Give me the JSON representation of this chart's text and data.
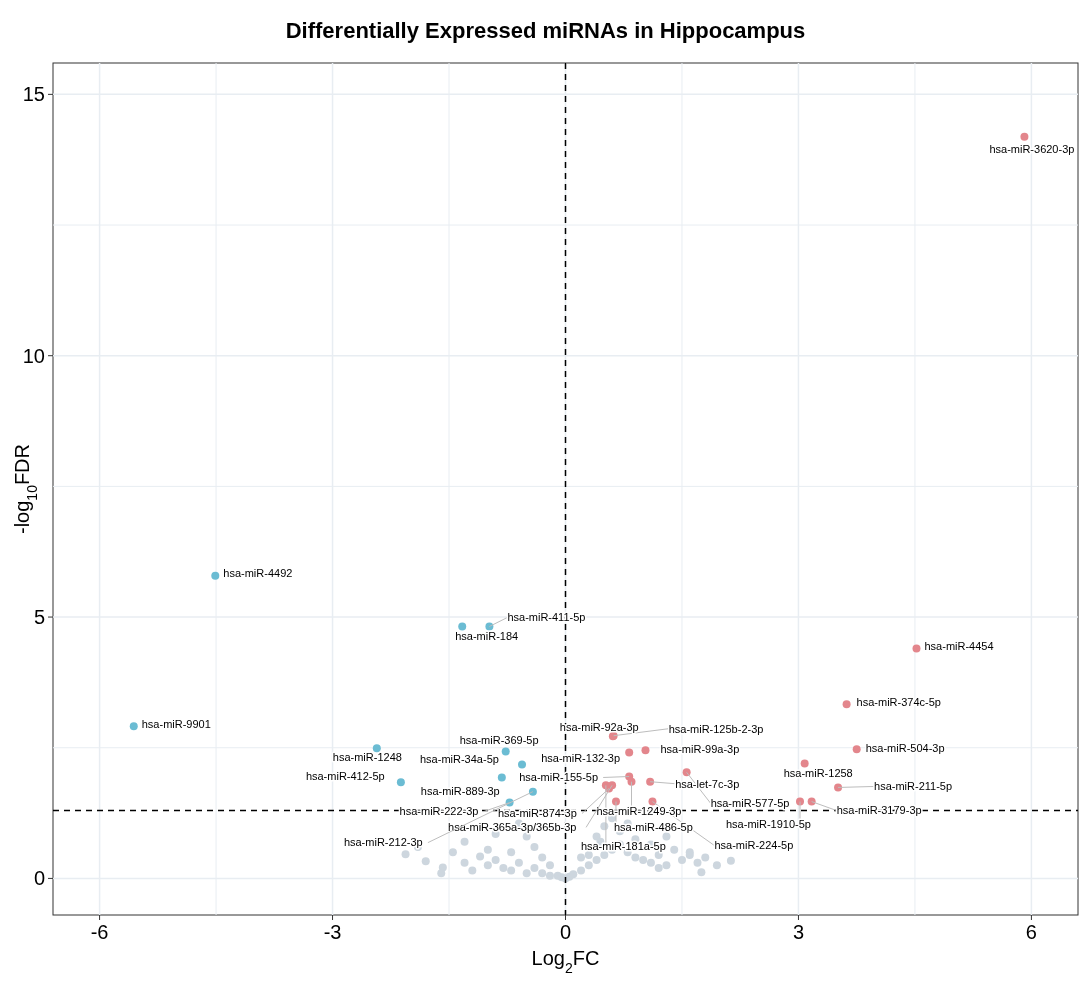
{
  "chart_data": {
    "type": "scatter",
    "title": "Differentially Expressed miRNAs in Hippocampus",
    "xlabel": "Log$_{2}$FC",
    "ylabel": "-log$_{10}$FDR",
    "xlim": [
      -6.6,
      6.6
    ],
    "ylim": [
      -0.7,
      15.6
    ],
    "xticks": [
      -6,
      {
        "value": -4.5,
        "label": null
      },
      -3,
      {
        "value": -1.5,
        "label": null
      },
      0,
      {
        "value": 1.5,
        "label": null
      },
      3,
      {
        "value": 4.5,
        "label": null
      },
      6
    ],
    "yticks": [
      0,
      {
        "value": 2.5,
        "label": null
      },
      5,
      {
        "value": 7.5,
        "label": null
      },
      10,
      {
        "value": 12.5,
        "label": null
      },
      15
    ],
    "grid": true,
    "legend": false,
    "marker": "circle",
    "ref_lines": [
      {
        "axis": "x",
        "value": 0,
        "color": "#000000",
        "line_style": "dashed"
      },
      {
        "axis": "y",
        "value": 1.3,
        "color": "#000000",
        "line_style": "dashed"
      }
    ],
    "series": [
      {
        "color": "#cdd6de",
        "x": [
          -2.06,
          -1.8,
          -1.58,
          -1.45,
          -1.3,
          -1.2,
          -1.1,
          -1.0,
          -0.9,
          -0.8,
          -0.7,
          -0.6,
          -0.5,
          -0.4,
          -0.3,
          -0.2,
          -0.1,
          -0.05,
          0.0,
          0.05,
          0.1,
          0.2,
          0.3,
          0.4,
          0.5,
          0.6,
          0.7,
          0.8,
          0.9,
          1.0,
          1.1,
          1.2,
          1.3,
          1.4,
          1.5,
          1.6,
          1.7,
          1.8,
          1.95,
          2.13,
          -1.9,
          -1.3,
          -0.9,
          -0.6,
          -0.4,
          -0.3,
          -0.2,
          0.2,
          0.3,
          0.4,
          0.5,
          0.7,
          0.9,
          1.1,
          1.3,
          1.6,
          -1.0,
          -0.7,
          0.6,
          0.8,
          -0.5,
          0.45,
          1.2,
          -1.6,
          1.75
        ],
        "values": [
          0.46,
          0.33,
          0.21,
          0.5,
          0.3,
          0.15,
          0.42,
          0.25,
          0.35,
          0.2,
          0.15,
          0.3,
          0.1,
          0.2,
          0.1,
          0.05,
          0.05,
          0.02,
          0.0,
          0.03,
          0.08,
          0.15,
          0.25,
          0.35,
          0.45,
          0.55,
          0.65,
          0.5,
          0.4,
          0.35,
          0.3,
          0.45,
          0.25,
          0.55,
          0.35,
          0.5,
          0.3,
          0.4,
          0.25,
          0.34,
          0.6,
          0.7,
          0.85,
          1.05,
          0.6,
          0.4,
          0.25,
          0.4,
          0.45,
          0.8,
          1.0,
          0.9,
          0.75,
          0.65,
          0.8,
          0.45,
          0.55,
          0.5,
          1.15,
          1.05,
          0.8,
          0.7,
          0.2,
          0.1,
          0.12
        ]
      },
      {
        "color": "#6bbcd3",
        "x": [
          -4.51,
          -5.56,
          -1.33,
          -0.98,
          -2.43,
          -2.12,
          -0.77,
          -0.56,
          -0.82,
          -0.42,
          -0.72
        ],
        "values": [
          5.79,
          2.91,
          4.82,
          4.82,
          2.49,
          1.84,
          2.43,
          2.18,
          1.93,
          1.66,
          1.45
        ]
      },
      {
        "color": "#e3868c",
        "x": [
          0.61,
          0.62,
          0.82,
          1.03,
          0.82,
          0.85,
          1.09,
          1.56,
          0.52,
          0.56,
          0.6,
          0.65,
          1.12,
          3.02,
          3.17,
          3.08,
          3.51,
          3.75,
          3.62,
          4.52,
          5.91
        ],
        "values": [
          2.72,
          2.73,
          2.41,
          2.45,
          1.95,
          1.85,
          1.85,
          2.03,
          1.78,
          1.72,
          1.78,
          1.47,
          1.47,
          1.47,
          1.47,
          2.2,
          1.74,
          2.47,
          3.33,
          4.4,
          14.19
        ]
      }
    ],
    "annotations": [
      {
        "text": "hsa-miR-3620-3p",
        "x": 5.91,
        "y": 14.19
      },
      {
        "text": "hsa-miR-4492",
        "x": -4.51,
        "y": 5.79
      },
      {
        "text": "hsa-miR-9901",
        "x": -5.56,
        "y": 2.91
      },
      {
        "text": "hsa-miR-411-5p",
        "x": -0.98,
        "y": 4.82
      },
      {
        "text": "hsa-miR-184",
        "x": -1.33,
        "y": 4.82
      },
      {
        "text": "hsa-miR-4454",
        "x": 4.52,
        "y": 4.4
      },
      {
        "text": "hsa-miR-374c-5p",
        "x": 3.62,
        "y": 3.33
      },
      {
        "text": "hsa-miR-504-3p",
        "x": 3.75,
        "y": 2.47
      },
      {
        "text": "hsa-miR-1258",
        "x": 3.08,
        "y": 2.2
      },
      {
        "text": "hsa-miR-211-5p",
        "x": 3.51,
        "y": 1.74
      },
      {
        "text": "hsa-miR-3179-3p",
        "x": 3.17,
        "y": 1.47
      },
      {
        "text": "hsa-miR-1910-5p",
        "x": 3.02,
        "y": 1.47
      },
      {
        "text": "hsa-miR-577-5p",
        "x": 1.56,
        "y": 2.03
      },
      {
        "text": "hsa-let-7c-3p",
        "x": 1.09,
        "y": 1.85
      },
      {
        "text": "hsa-miR-224-5p",
        "x": 1.12,
        "y": 1.47
      },
      {
        "text": "hsa-miR-486-5p",
        "x": 0.65,
        "y": 1.47
      },
      {
        "text": "hsa-miR-181a-5p",
        "x": 0.52,
        "y": 1.78
      },
      {
        "text": "hsa-miR-1249-3p",
        "x": 0.85,
        "y": 1.85
      },
      {
        "text": "hsa-miR-155-5p",
        "x": 0.82,
        "y": 1.95
      },
      {
        "text": "hsa-miR-99a-3p",
        "x": 1.03,
        "y": 2.45
      },
      {
        "text": "hsa-miR-125b-2-3p",
        "x": 0.62,
        "y": 2.73
      },
      {
        "text": "hsa-miR-92a-3p",
        "x": 0.61,
        "y": 2.72
      },
      {
        "text": "hsa-miR-132-3p",
        "x": 0.82,
        "y": 2.41
      },
      {
        "text": "hsa-miR-369-5p",
        "x": -0.77,
        "y": 2.43
      },
      {
        "text": "hsa-miR-34a-5p",
        "x": -0.56,
        "y": 2.18
      },
      {
        "text": "hsa-miR-1248",
        "x": -2.43,
        "y": 2.49
      },
      {
        "text": "hsa-miR-412-5p",
        "x": -2.12,
        "y": 1.84
      },
      {
        "text": "hsa-miR-889-3p",
        "x": -0.82,
        "y": 1.93
      },
      {
        "text": "hsa-miR-222-3p",
        "x": -0.72,
        "y": 1.45
      },
      {
        "text": "hsa-miR-874-3p",
        "x": 0.56,
        "y": 1.72
      },
      {
        "text": "hsa-miR-365a-3p/365b-3p",
        "x": 0.6,
        "y": 1.78
      },
      {
        "text": "hsa-miR-212-3p",
        "x": -0.42,
        "y": 1.66
      }
    ]
  }
}
